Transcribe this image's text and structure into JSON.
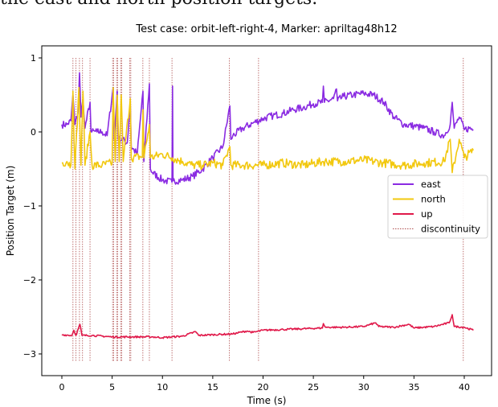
{
  "caption_fragment": "the east and north position targets.",
  "chart_data": {
    "type": "line",
    "title": "Test case: orbit-left-right-4, Marker: apriltag48h12",
    "xlabel": "Time (s)",
    "ylabel": "Position Target (m)",
    "xlim": [
      -2,
      43
    ],
    "ylim": [
      -3.3,
      1.15
    ],
    "xticks": [
      0,
      5,
      10,
      15,
      20,
      25,
      30,
      35,
      40
    ],
    "yticks": [
      1,
      0,
      -1,
      -2,
      -3
    ],
    "ytick_labels": [
      "1",
      "0",
      "−1",
      "−2",
      "−3"
    ],
    "grid": false,
    "legend_position": "center-right",
    "series": [
      {
        "name": "east",
        "color": "#8a2be2",
        "points": [
          [
            0,
            0.1
          ],
          [
            0.5,
            0.1
          ],
          [
            0.9,
            0.15
          ],
          [
            1.1,
            0.5
          ],
          [
            1.3,
            0.1
          ],
          [
            1.6,
            0.25
          ],
          [
            1.76,
            0.8
          ],
          [
            1.9,
            0.2
          ],
          [
            2.1,
            0.45
          ],
          [
            2.3,
            0.05
          ],
          [
            2.8,
            0.4
          ],
          [
            2.9,
            0.0
          ],
          [
            3.5,
            0.0
          ],
          [
            4,
            0.0
          ],
          [
            4.5,
            -0.05
          ],
          [
            5.1,
            0.6
          ],
          [
            5.2,
            -0.1
          ],
          [
            5.5,
            0.55
          ],
          [
            5.6,
            -0.1
          ],
          [
            6,
            -0.1
          ],
          [
            6.5,
            -0.15
          ],
          [
            6.8,
            0.4
          ],
          [
            6.9,
            -0.2
          ],
          [
            7.5,
            -0.3
          ],
          [
            8.06,
            0.55
          ],
          [
            8.15,
            -0.4
          ],
          [
            8.7,
            0.65
          ],
          [
            8.8,
            -0.5
          ],
          [
            9,
            -0.55
          ],
          [
            10,
            -0.65
          ],
          [
            10.95,
            -0.68
          ],
          [
            11.0,
            0.62
          ],
          [
            11.05,
            -0.66
          ],
          [
            12,
            -0.65
          ],
          [
            13,
            -0.6
          ],
          [
            14,
            -0.5
          ],
          [
            15,
            -0.35
          ],
          [
            16,
            -0.2
          ],
          [
            16.7,
            0.35
          ],
          [
            16.8,
            -0.1
          ],
          [
            17,
            -0.05
          ],
          [
            18,
            0.05
          ],
          [
            19,
            0.12
          ],
          [
            20,
            0.18
          ],
          [
            21,
            0.22
          ],
          [
            22,
            0.25
          ],
          [
            23,
            0.3
          ],
          [
            24,
            0.33
          ],
          [
            25,
            0.38
          ],
          [
            25.9,
            0.4
          ],
          [
            26,
            0.62
          ],
          [
            26.1,
            0.4
          ],
          [
            27,
            0.45
          ],
          [
            27.3,
            0.58
          ],
          [
            27.4,
            0.42
          ],
          [
            28,
            0.48
          ],
          [
            29,
            0.5
          ],
          [
            30,
            0.52
          ],
          [
            31,
            0.5
          ],
          [
            32,
            0.4
          ],
          [
            33,
            0.2
          ],
          [
            34,
            0.1
          ],
          [
            35,
            0.08
          ],
          [
            36,
            0.05
          ],
          [
            37,
            0.0
          ],
          [
            38,
            -0.05
          ],
          [
            38.6,
            0.1
          ],
          [
            38.8,
            0.4
          ],
          [
            39,
            0.05
          ],
          [
            39.5,
            0.2
          ],
          [
            40,
            0.03
          ],
          [
            40.5,
            0.05
          ],
          [
            40.9,
            0.03
          ]
        ]
      },
      {
        "name": "north",
        "color": "#f2c80f",
        "points": [
          [
            0,
            -0.42
          ],
          [
            0.5,
            -0.4
          ],
          [
            0.9,
            -0.45
          ],
          [
            1.1,
            0.55
          ],
          [
            1.3,
            -0.5
          ],
          [
            1.7,
            0.6
          ],
          [
            1.9,
            -0.45
          ],
          [
            2.1,
            0.55
          ],
          [
            2.3,
            -0.45
          ],
          [
            2.8,
            0.0
          ],
          [
            3,
            -0.45
          ],
          [
            4,
            -0.45
          ],
          [
            5,
            -0.42
          ],
          [
            5.1,
            0.6
          ],
          [
            5.3,
            -0.4
          ],
          [
            5.5,
            0.5
          ],
          [
            5.7,
            -0.4
          ],
          [
            5.9,
            0.5
          ],
          [
            6.1,
            -0.4
          ],
          [
            6.8,
            0.45
          ],
          [
            6.9,
            -0.35
          ],
          [
            8,
            -0.33
          ],
          [
            8.06,
            0.3
          ],
          [
            8.15,
            -0.35
          ],
          [
            8.7,
            0.1
          ],
          [
            8.8,
            -0.35
          ],
          [
            10,
            -0.3
          ],
          [
            11,
            -0.35
          ],
          [
            12,
            -0.4
          ],
          [
            13,
            -0.45
          ],
          [
            14,
            -0.45
          ],
          [
            15,
            -0.42
          ],
          [
            16,
            -0.45
          ],
          [
            16.7,
            -0.2
          ],
          [
            16.8,
            -0.45
          ],
          [
            18,
            -0.45
          ],
          [
            20,
            -0.45
          ],
          [
            22,
            -0.42
          ],
          [
            24,
            -0.45
          ],
          [
            26,
            -0.4
          ],
          [
            28,
            -0.4
          ],
          [
            30,
            -0.38
          ],
          [
            32,
            -0.42
          ],
          [
            34,
            -0.45
          ],
          [
            36,
            -0.42
          ],
          [
            38,
            -0.4
          ],
          [
            38.6,
            -0.1
          ],
          [
            38.8,
            -0.55
          ],
          [
            39.5,
            -0.1
          ],
          [
            40,
            -0.35
          ],
          [
            40.9,
            -0.25
          ]
        ]
      },
      {
        "name": "up",
        "color": "#e0194a",
        "points": [
          [
            0,
            -2.74
          ],
          [
            1,
            -2.75
          ],
          [
            1.2,
            -2.68
          ],
          [
            1.4,
            -2.75
          ],
          [
            1.8,
            -2.6
          ],
          [
            2.0,
            -2.75
          ],
          [
            3,
            -2.75
          ],
          [
            5,
            -2.77
          ],
          [
            7,
            -2.77
          ],
          [
            9,
            -2.77
          ],
          [
            10,
            -2.78
          ],
          [
            12,
            -2.76
          ],
          [
            13.3,
            -2.7
          ],
          [
            13.6,
            -2.75
          ],
          [
            15,
            -2.74
          ],
          [
            17,
            -2.73
          ],
          [
            18.4,
            -2.69
          ],
          [
            19,
            -2.71
          ],
          [
            20,
            -2.68
          ],
          [
            22,
            -2.67
          ],
          [
            24,
            -2.66
          ],
          [
            25.9,
            -2.65
          ],
          [
            26,
            -2.59
          ],
          [
            26.2,
            -2.64
          ],
          [
            28,
            -2.64
          ],
          [
            30,
            -2.63
          ],
          [
            31.2,
            -2.58
          ],
          [
            31.5,
            -2.63
          ],
          [
            33,
            -2.64
          ],
          [
            34.5,
            -2.6
          ],
          [
            35,
            -2.65
          ],
          [
            37,
            -2.63
          ],
          [
            38.5,
            -2.58
          ],
          [
            38.8,
            -2.47
          ],
          [
            39,
            -2.63
          ],
          [
            40,
            -2.64
          ],
          [
            40.9,
            -2.68
          ]
        ]
      }
    ],
    "discontinuity": {
      "name": "discontinuity",
      "color": "#b05050",
      "times": [
        1.1,
        1.4,
        1.75,
        2.05,
        2.8,
        5.05,
        5.15,
        5.45,
        5.55,
        5.85,
        5.95,
        6.75,
        6.85,
        8.05,
        8.7,
        10.95,
        16.65,
        19.55,
        39.9
      ]
    }
  }
}
